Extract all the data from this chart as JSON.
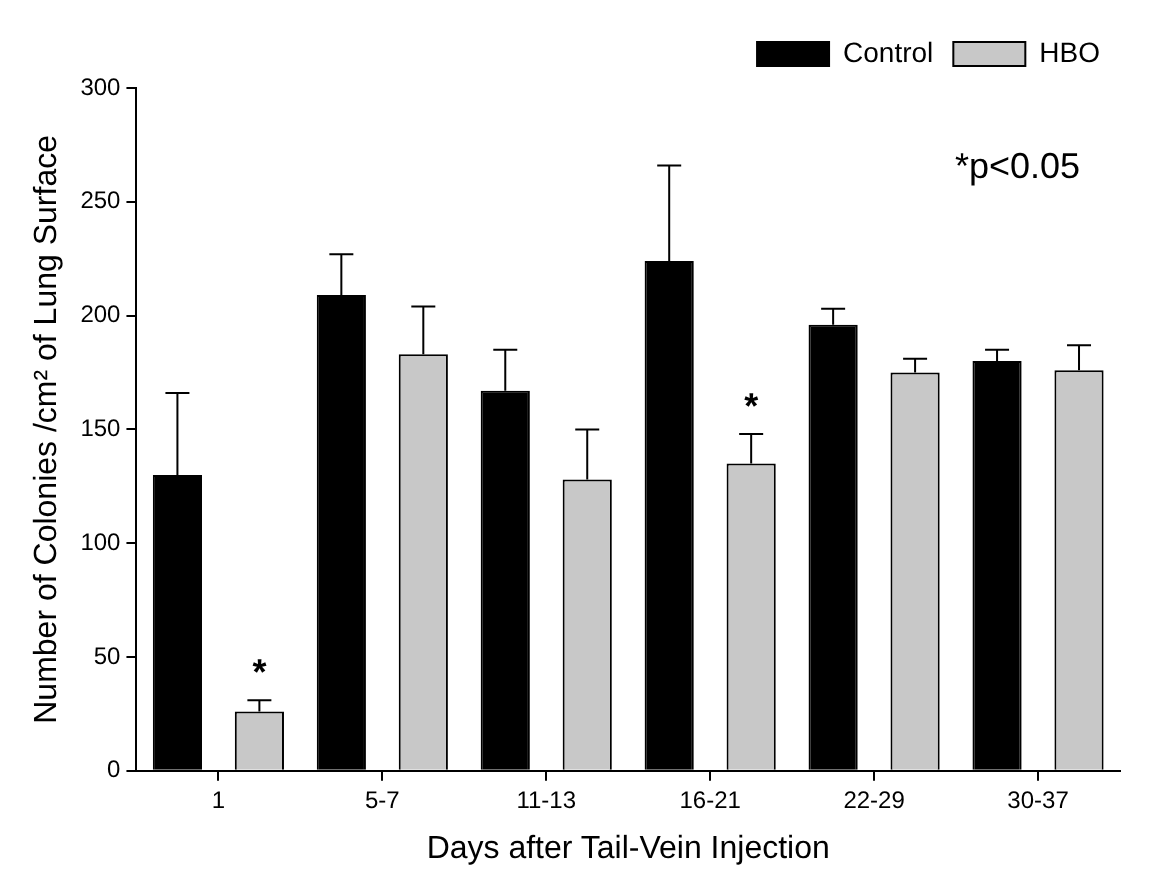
{
  "chart_data": {
    "type": "bar",
    "xlabel": "Days after Tail-Vein Injection",
    "ylabel": "Number of Colonies /cm² of Lung Surface",
    "categories": [
      "1",
      "5-7",
      "11-13",
      "16-21",
      "22-29",
      "30-37"
    ],
    "series": [
      {
        "name": "Control",
        "color": "#000000",
        "values": [
          130,
          209,
          167,
          224,
          196,
          180
        ],
        "errors": [
          [
            130,
            166
          ],
          [
            209,
            227
          ],
          [
            167,
            185
          ],
          [
            224,
            266
          ],
          [
            196,
            203
          ],
          [
            180,
            185
          ]
        ]
      },
      {
        "name": "HBO",
        "color": "#c8c8c8",
        "values": [
          26,
          183,
          128,
          135,
          175,
          176
        ],
        "errors": [
          [
            26,
            31
          ],
          [
            183,
            204
          ],
          [
            128,
            150
          ],
          [
            135,
            148
          ],
          [
            175,
            181
          ],
          [
            176,
            187
          ]
        ],
        "value_labels": [
          "*",
          null,
          null,
          "*",
          null,
          null
        ]
      }
    ],
    "ylim": [
      0,
      300
    ],
    "yticks": [
      0,
      50,
      100,
      150,
      200,
      250,
      300
    ],
    "grid": false,
    "legend": "top right",
    "annotations": [
      "*p<0.05"
    ]
  }
}
